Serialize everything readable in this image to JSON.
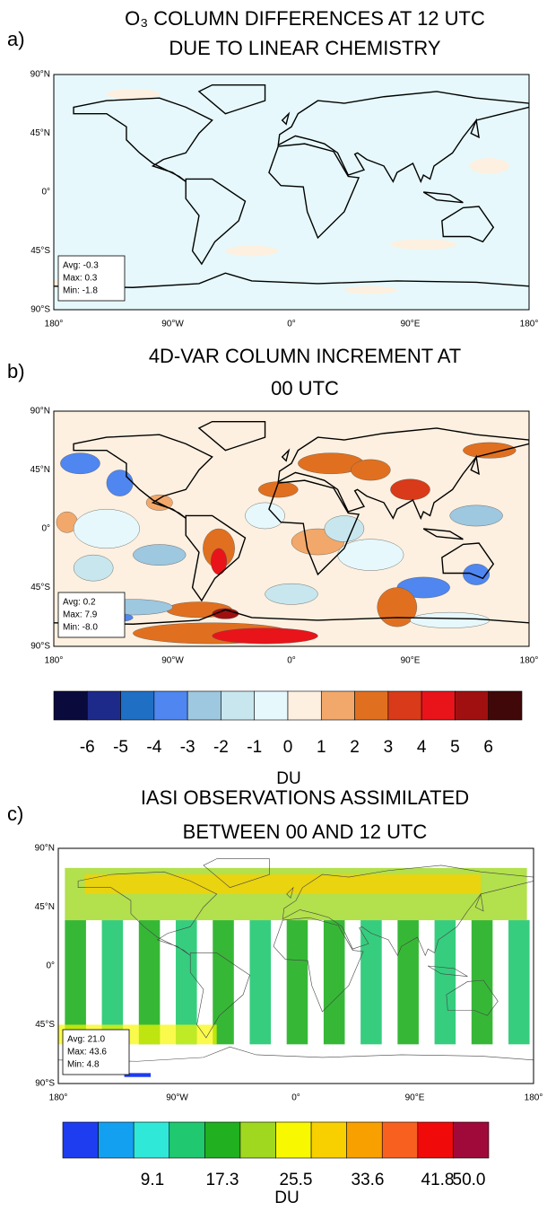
{
  "panels": [
    {
      "label": "a)",
      "title": [
        "O₃ COLUMN DIFFERENCES AT 12 UTC",
        "DUE TO LINEAR CHEMISTRY"
      ],
      "stats": [
        "Avg: -0.3",
        "Max: 0.3",
        "Min: -1.8"
      ]
    },
    {
      "label": "b)",
      "title": [
        "4D-VAR COLUMN INCREMENT AT",
        "00 UTC"
      ],
      "stats": [
        "Avg: 0.2",
        "Max: 7.9",
        "Min: -8.0"
      ]
    },
    {
      "label": "c)",
      "title": [
        "IASI OBSERVATIONS ASSIMILATED",
        "BETWEEN 00 AND 12 UTC"
      ],
      "stats": [
        "Avg: 21.0",
        "Max: 43.6",
        "Min: 4.8"
      ]
    }
  ],
  "lat_labels": [
    "90°N",
    "45°N",
    "0°",
    "45°S",
    "90°S"
  ],
  "lon_labels": [
    "180°",
    "90°W",
    "0°",
    "90°E",
    "180°"
  ],
  "colorbars": [
    {
      "labels": [
        "-6",
        "-5",
        "-4",
        "-3",
        "-2",
        "-1",
        "0",
        "1",
        "2",
        "3",
        "4",
        "5",
        "6"
      ],
      "unit": "DU",
      "colors": [
        "#0a0a3c",
        "#1e2a8a",
        "#1f6fc4",
        "#4f86f0",
        "#9ec7e0",
        "#c8e6ee",
        "#e6f8fb",
        "#fdf0e0",
        "#f2a86a",
        "#e07020",
        "#d83a1a",
        "#e8141a",
        "#a01010",
        "#400808"
      ]
    },
    {
      "labels": [
        "9.1",
        "17.3",
        "25.5",
        "33.6",
        "41.8",
        "50.0"
      ],
      "unit": "DU",
      "colors": [
        "#1e3cf0",
        "#14a0f0",
        "#30e8d8",
        "#20c870",
        "#20b020",
        "#a0d820",
        "#f8f800",
        "#f8d000",
        "#f8a000",
        "#f86020",
        "#f00a0a",
        "#a00a3a"
      ]
    }
  ]
}
